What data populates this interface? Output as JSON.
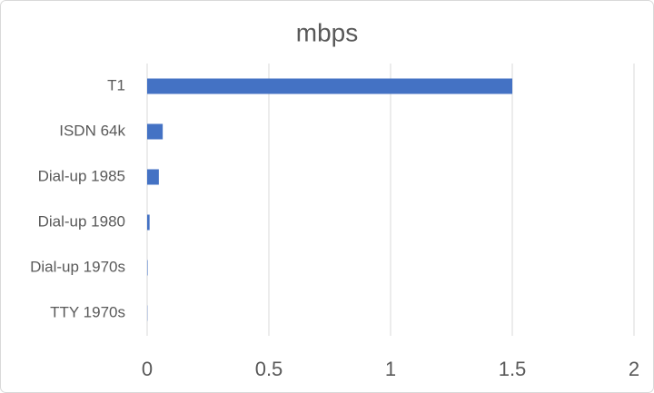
{
  "chart_data": {
    "type": "barh",
    "title": "mbps",
    "categories": [
      "T1",
      "ISDN 64k",
      "Dial-up 1985",
      "Dial-up 1980",
      "Dial-up 1970s",
      "TTY 1970s"
    ],
    "values": [
      1.5,
      0.064,
      0.048,
      0.01,
      0.002,
      0.001
    ],
    "color": "#4472c4",
    "xlim": [
      0,
      2
    ],
    "xticks": [
      0,
      0.5,
      1,
      1.5,
      2
    ],
    "grid": true
  }
}
